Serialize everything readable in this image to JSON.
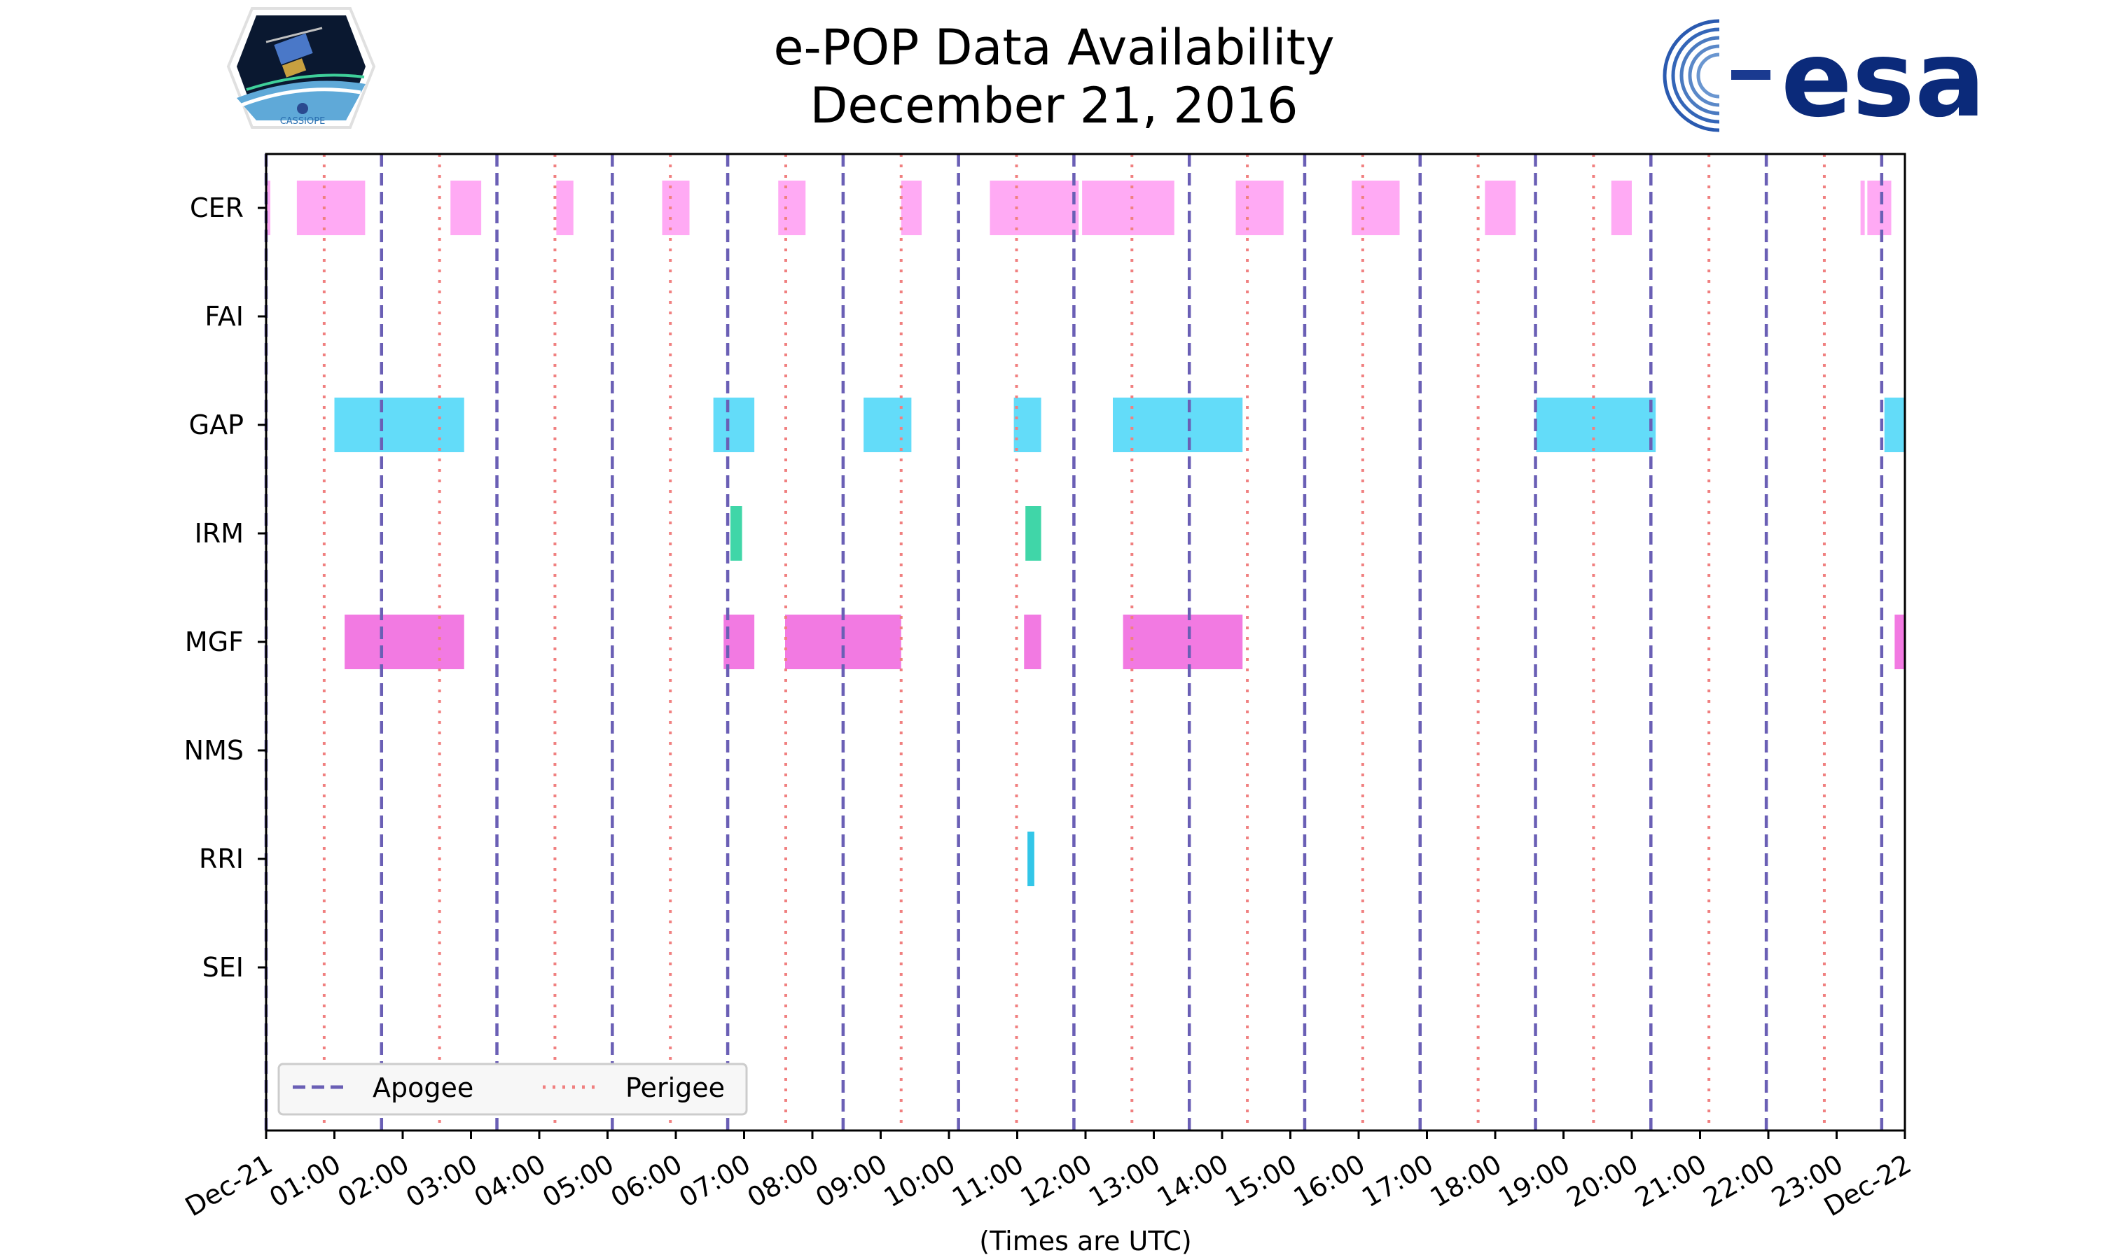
{
  "chart_data": {
    "type": "timeline",
    "title": [
      "e-POP Data Availability",
      "December 21, 2016"
    ],
    "xlabel": "(Times are UTC)",
    "xlim_hours": [
      0,
      24
    ],
    "x_tick_labels": [
      "Dec-21",
      "01:00",
      "02:00",
      "03:00",
      "04:00",
      "05:00",
      "06:00",
      "07:00",
      "08:00",
      "09:00",
      "10:00",
      "11:00",
      "12:00",
      "13:00",
      "14:00",
      "15:00",
      "16:00",
      "17:00",
      "18:00",
      "19:00",
      "20:00",
      "21:00",
      "22:00",
      "23:00",
      "Dec-22"
    ],
    "instruments": [
      "CER",
      "FAI",
      "GAP",
      "IRM",
      "MGF",
      "NMS",
      "RRI",
      "SEI"
    ],
    "instrument_colors": {
      "CER": "#ffaaf4",
      "FAI": "#888888",
      "GAP": "#63dcf9",
      "IRM": "#40d6a8",
      "MGF": "#f27ae2",
      "NMS": "#888888",
      "RRI": "#33c6e8",
      "SEI": "#888888"
    },
    "apogee_hours": [
      0.0,
      1.69,
      3.38,
      5.07,
      6.76,
      8.45,
      10.14,
      11.83,
      13.52,
      15.21,
      16.9,
      18.59,
      20.28,
      21.97,
      23.66
    ],
    "perigee_hours": [
      0.85,
      2.54,
      4.23,
      5.92,
      7.61,
      9.3,
      10.99,
      12.68,
      14.37,
      16.06,
      17.75,
      19.44,
      21.13,
      22.82
    ],
    "apogee_color": "#6a5fb5",
    "perigee_color": "#f08080",
    "legend": [
      {
        "label": "Apogee",
        "style": "dashed"
      },
      {
        "label": "Perigee",
        "style": "dotted"
      }
    ],
    "intervals": {
      "CER": [
        [
          0.0,
          0.03
        ],
        [
          0.45,
          1.45
        ],
        [
          2.7,
          3.15
        ],
        [
          4.25,
          4.5
        ],
        [
          5.8,
          6.2
        ],
        [
          7.5,
          7.9
        ],
        [
          9.3,
          9.6
        ],
        [
          10.6,
          11.9
        ],
        [
          11.95,
          13.3
        ],
        [
          14.2,
          14.9
        ],
        [
          15.9,
          16.6
        ],
        [
          17.85,
          18.3
        ],
        [
          19.7,
          20.0
        ],
        [
          23.35,
          23.4
        ],
        [
          23.45,
          23.8
        ]
      ],
      "FAI": [],
      "GAP": [
        [
          1.0,
          2.9
        ],
        [
          6.55,
          7.15
        ],
        [
          8.75,
          9.45
        ],
        [
          10.95,
          11.35
        ],
        [
          12.4,
          14.3
        ],
        [
          18.6,
          20.35
        ],
        [
          23.7,
          24.0
        ]
      ],
      "IRM": [
        [
          6.8,
          6.97
        ],
        [
          11.12,
          11.35
        ]
      ],
      "MGF": [
        [
          1.15,
          2.9
        ],
        [
          6.7,
          7.15
        ],
        [
          7.6,
          9.3
        ],
        [
          11.1,
          11.35
        ],
        [
          12.55,
          14.3
        ],
        [
          23.85,
          24.0
        ]
      ],
      "NMS": [],
      "RRI": [
        [
          11.15,
          11.25
        ]
      ],
      "SEI": []
    }
  },
  "logos": {
    "cassiope_text": "CASSIOPE",
    "esa_text": "esa"
  }
}
